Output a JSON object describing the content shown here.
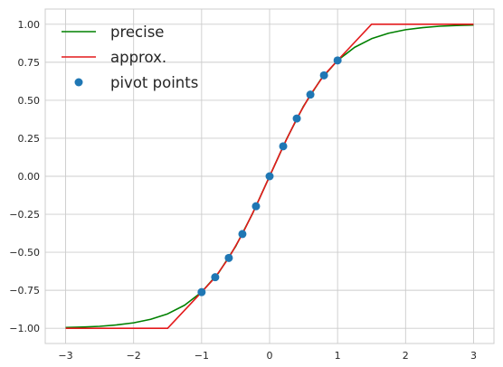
{
  "chart_data": {
    "type": "line",
    "title": "",
    "xlabel": "",
    "ylabel": "",
    "xlim": [
      -3.3,
      3.3
    ],
    "ylim": [
      -1.1,
      1.1
    ],
    "x_ticks": [
      -3,
      -2,
      -1,
      0,
      1,
      2,
      3
    ],
    "x_tick_labels": [
      "−3",
      "−2",
      "−1",
      "0",
      "1",
      "2",
      "3"
    ],
    "y_ticks": [
      -1.0,
      -0.75,
      -0.5,
      -0.25,
      0.0,
      0.25,
      0.5,
      0.75,
      1.0
    ],
    "y_tick_labels": [
      "−1.00",
      "−0.75",
      "−0.50",
      "−0.25",
      "0.00",
      "0.25",
      "0.50",
      "0.75",
      "1.00"
    ],
    "grid": true,
    "legend_position": "top-left",
    "series": [
      {
        "name": "precise",
        "kind": "line",
        "color": "#008000",
        "x": [
          -3.0,
          -2.75,
          -2.5,
          -2.25,
          -2.0,
          -1.75,
          -1.5,
          -1.25,
          -1.0,
          -0.75,
          -0.5,
          -0.25,
          0.0,
          0.25,
          0.5,
          0.75,
          1.0,
          1.25,
          1.5,
          1.75,
          2.0,
          2.25,
          2.5,
          2.75,
          3.0
        ],
        "y": [
          -0.995,
          -0.992,
          -0.987,
          -0.978,
          -0.964,
          -0.941,
          -0.905,
          -0.848,
          -0.762,
          -0.635,
          -0.462,
          -0.245,
          0.0,
          0.245,
          0.462,
          0.635,
          0.762,
          0.848,
          0.905,
          0.941,
          0.964,
          0.978,
          0.987,
          0.992,
          0.995
        ]
      },
      {
        "name": "approx.",
        "kind": "line",
        "color": "#e31a1c",
        "x": [
          -3.0,
          -1.5,
          -1.0,
          -0.8,
          -0.6,
          -0.4,
          -0.2,
          0.0,
          0.2,
          0.4,
          0.6,
          0.8,
          1.0,
          1.5,
          3.0
        ],
        "y": [
          -1.0,
          -1.0,
          -0.762,
          -0.664,
          -0.537,
          -0.38,
          -0.197,
          0.0,
          0.197,
          0.38,
          0.537,
          0.664,
          0.762,
          1.0,
          1.0
        ]
      },
      {
        "name": "pivot points",
        "kind": "scatter",
        "color": "#1f77b4",
        "x": [
          -1.0,
          -0.8,
          -0.6,
          -0.4,
          -0.2,
          0.0,
          0.2,
          0.4,
          0.6,
          0.8,
          1.0
        ],
        "y": [
          -0.762,
          -0.664,
          -0.537,
          -0.38,
          -0.197,
          0.0,
          0.197,
          0.38,
          0.537,
          0.664,
          0.762
        ]
      }
    ]
  }
}
